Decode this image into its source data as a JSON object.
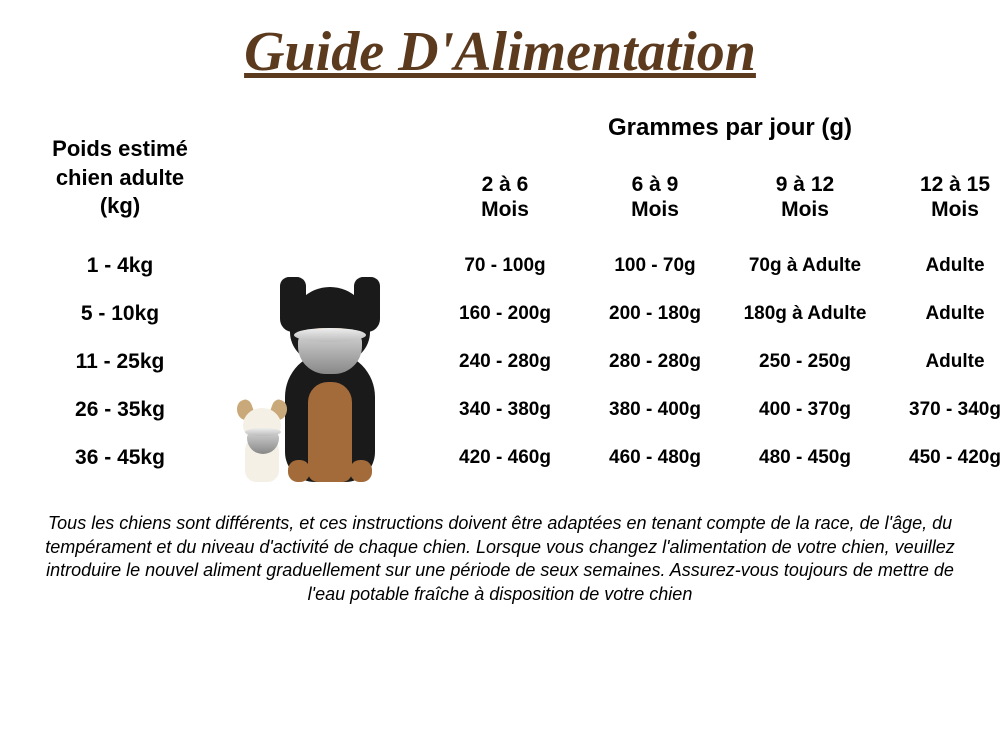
{
  "title": "Guide D'Alimentation",
  "title_color": "#5b3a1e",
  "headers": {
    "weight": "Poids estimé\nchien adulte\n(kg)",
    "grammes": "Grammes par jour (g)",
    "months": [
      "2 à 6\nMois",
      "6 à 9\nMois",
      "9 à 12\nMois",
      "12 à 15\nMois"
    ]
  },
  "rows": [
    {
      "label": "1 - 4kg",
      "values": [
        "70 - 100g",
        "100 - 70g",
        "70g à Adulte",
        "Adulte"
      ]
    },
    {
      "label": "5 - 10kg",
      "values": [
        "160 - 200g",
        "200 - 180g",
        "180g à Adulte",
        "Adulte"
      ]
    },
    {
      "label": "11 - 25kg",
      "values": [
        "240 - 280g",
        "280 - 280g",
        "250 - 250g",
        "Adulte"
      ]
    },
    {
      "label": "26 - 35kg",
      "values": [
        "340 - 380g",
        "380 - 400g",
        "400 - 370g",
        "370 - 340g"
      ]
    },
    {
      "label": "36 - 45kg",
      "values": [
        "420 - 460g",
        "460 - 480g",
        "480 - 450g",
        "450 - 420g"
      ]
    }
  ],
  "disclaimer": "Tous les chiens sont différents, et ces instructions doivent  être adaptées en tenant compte de la race, de l'âge, du tempérament et du niveau d'activité de chaque chien. Lorsque vous changez l'alimentation de votre chien, veuillez introduire le nouvel aliment graduellement sur une période de seux semaines. Assurez-vous toujours de mettre de l'eau potable fraîche à disposition de votre chien",
  "styles": {
    "background": "#ffffff",
    "text_color": "#000000",
    "title_fontsize": 56,
    "header_fontsize": 22,
    "cell_fontsize": 19,
    "disclaimer_fontsize": 18
  }
}
